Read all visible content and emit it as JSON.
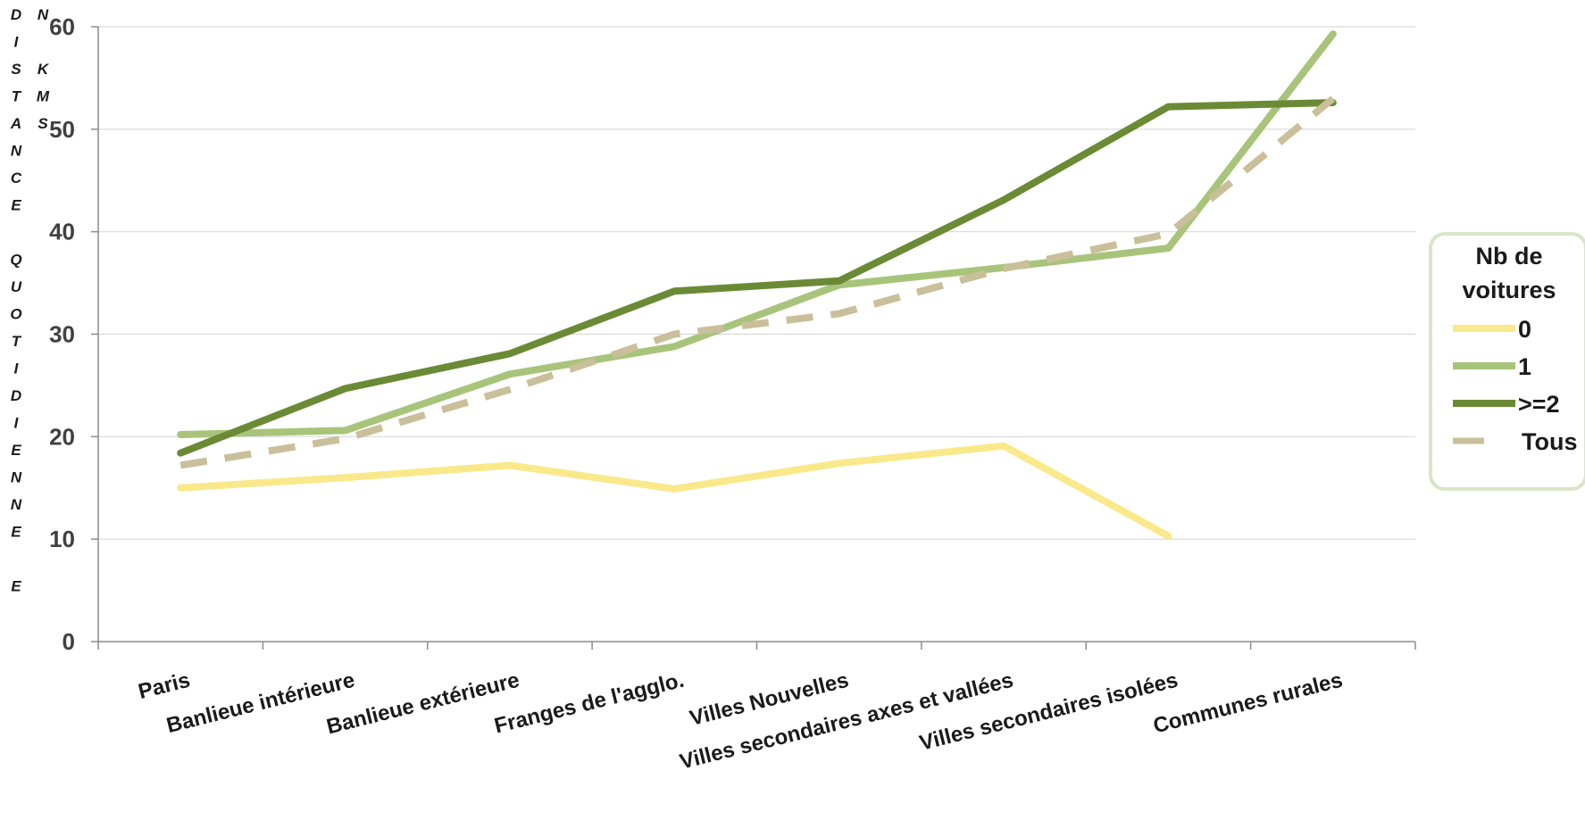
{
  "chart_data": {
    "type": "line",
    "ylabel": "DISTANCE QUOTIDIENNE EN KMS",
    "ylim": [
      0,
      60
    ],
    "yticks": [
      0,
      10,
      20,
      30,
      40,
      50,
      60
    ],
    "categories": [
      "Paris",
      "Banlieue intérieure",
      "Banlieue extérieure",
      "Franges de l'agglo.",
      "Villes Nouvelles",
      "Villes secondaires axes et vallées",
      "Villes secondaires isolées",
      "Communes rurales"
    ],
    "legend": {
      "title": "Nb de voitures",
      "position": "right"
    },
    "grid": "horizontal",
    "series": [
      {
        "name": "0",
        "color": "#f9e98a",
        "dash": false,
        "values": [
          15.0,
          16.0,
          17.2,
          14.9,
          17.4,
          19.1,
          10.3,
          null
        ]
      },
      {
        "name": "1",
        "color": "#a8c47a",
        "dash": false,
        "values": [
          20.2,
          20.6,
          26.1,
          28.8,
          34.8,
          36.5,
          38.4,
          59.3
        ]
      },
      {
        "name": ">=2",
        "color": "#6b8a35",
        "dash": false,
        "values": [
          18.4,
          24.7,
          28.1,
          34.2,
          35.2,
          43.1,
          52.2,
          52.6
        ]
      },
      {
        "name": "Tous",
        "color": "#c9bf9a",
        "dash": true,
        "values": [
          17.2,
          19.8,
          24.6,
          30.0,
          32.0,
          36.4,
          39.8,
          53.0
        ]
      }
    ]
  }
}
